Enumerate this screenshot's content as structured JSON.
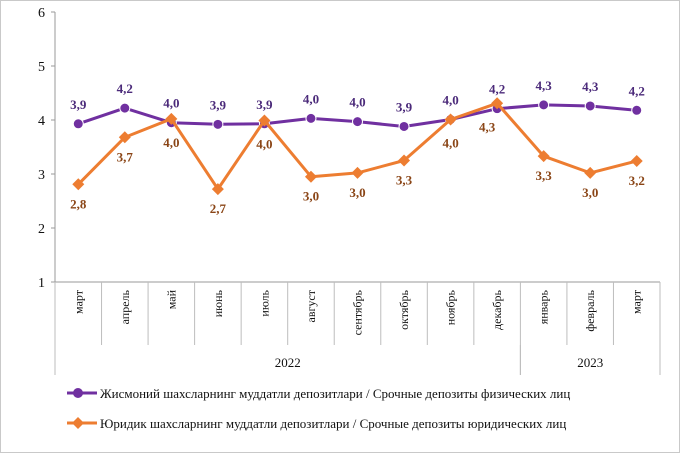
{
  "chart_data": {
    "type": "line",
    "categories": [
      "март",
      "апрель",
      "май",
      "июнь",
      "июль",
      "август",
      "сентябрь",
      "октябрь",
      "ноябрь",
      "декабрь",
      "январь",
      "февраль",
      "март"
    ],
    "years": [
      {
        "label": "2022",
        "from": 0,
        "to": 9
      },
      {
        "label": "2023",
        "from": 10,
        "to": 12
      }
    ],
    "ylim": [
      1,
      6
    ],
    "yticks": [
      "1",
      "2",
      "3",
      "4",
      "5",
      "6"
    ],
    "grid": false,
    "legend_position": "bottom",
    "series": [
      {
        "name": "Жисмоний шахсларнинг муддатли депозитлари / Срочные депозиты физических лиц",
        "color": "#7030a0",
        "label_color": "#4b2a7a",
        "marker": "circle",
        "values": [
          3.93,
          4.22,
          3.95,
          3.92,
          3.93,
          4.03,
          3.97,
          3.88,
          4.01,
          4.21,
          4.28,
          4.26,
          4.18
        ],
        "labels": [
          "3,9",
          "4,2",
          "4,0",
          "3,9",
          "3,9",
          "4,0",
          "4,0",
          "3,9",
          "4,0",
          "4,2",
          "4,3",
          "4,3",
          "4,2"
        ]
      },
      {
        "name": "Юридик шахсларнинг муддатли депозитлари / Срочные депозиты юридических лиц",
        "color": "#ed7d31",
        "label_color": "#8a4516",
        "marker": "diamond",
        "values": [
          2.81,
          3.68,
          4.02,
          2.72,
          3.99,
          2.95,
          3.02,
          3.25,
          4.01,
          4.31,
          3.33,
          3.02,
          3.24
        ],
        "labels": [
          "2,8",
          "3,7",
          "4,0",
          "2,7",
          "4,0",
          "3,0",
          "3,0",
          "3,3",
          "4,0",
          "4,3",
          "3,3",
          "3,0",
          "3,2"
        ]
      }
    ]
  }
}
